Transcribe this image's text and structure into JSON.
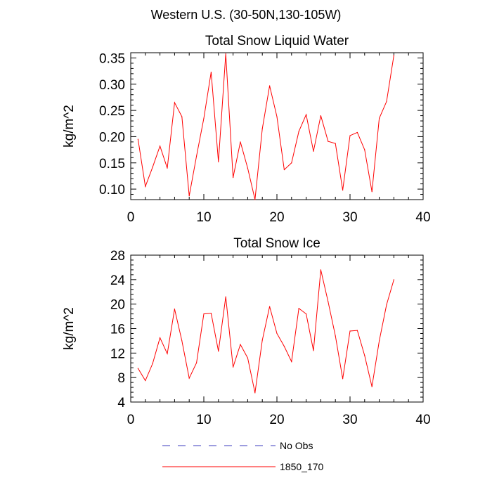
{
  "figure": {
    "title": "Western U.S. (30-50N,130-105W)"
  },
  "legend": {
    "items": [
      {
        "label": "No Obs",
        "color": "#3b3bbf",
        "style": "dashed"
      },
      {
        "label": "1850_170",
        "color": "#ff0000",
        "style": "solid"
      }
    ]
  },
  "chart_data": [
    {
      "type": "line",
      "title": "Total Snow Liquid Water",
      "xlabel": "",
      "ylabel": "kg/m^2",
      "xlim": [
        0,
        40
      ],
      "ylim": [
        0.08,
        0.36
      ],
      "xticks": [
        0,
        10,
        20,
        30,
        40
      ],
      "yticks": [
        0.1,
        0.15,
        0.2,
        0.25,
        0.3,
        0.35
      ],
      "ytick_labels": [
        "0.10",
        "0.15",
        "0.20",
        "0.25",
        "0.30",
        "0.35"
      ],
      "grid": false,
      "series": [
        {
          "name": "1850_170",
          "color": "#ff0000",
          "x": [
            1,
            2,
            3,
            4,
            5,
            6,
            7,
            8,
            9,
            10,
            11,
            12,
            13,
            14,
            15,
            16,
            17,
            18,
            19,
            20,
            21,
            22,
            23,
            24,
            25,
            26,
            27,
            28,
            29,
            30,
            31,
            32,
            33,
            34,
            35,
            36
          ],
          "values": [
            0.195,
            0.105,
            0.142,
            0.182,
            0.14,
            0.265,
            0.238,
            0.087,
            0.163,
            0.235,
            0.323,
            0.152,
            0.358,
            0.122,
            0.19,
            0.14,
            0.08,
            0.215,
            0.297,
            0.238,
            0.137,
            0.15,
            0.21,
            0.242,
            0.172,
            0.24,
            0.191,
            0.187,
            0.098,
            0.202,
            0.208,
            0.175,
            0.095,
            0.235,
            0.267,
            0.355
          ]
        }
      ]
    },
    {
      "type": "line",
      "title": "Total Snow Ice",
      "xlabel": "",
      "ylabel": "kg/m^2",
      "xlim": [
        0,
        40
      ],
      "ylim": [
        4,
        28
      ],
      "xticks": [
        0,
        10,
        20,
        30,
        40
      ],
      "yticks": [
        4,
        8,
        12,
        16,
        20,
        24,
        28
      ],
      "ytick_labels": [
        "4",
        "8",
        "12",
        "16",
        "20",
        "24",
        "28"
      ],
      "grid": false,
      "series": [
        {
          "name": "1850_170",
          "color": "#ff0000",
          "x": [
            1,
            2,
            3,
            4,
            5,
            6,
            7,
            8,
            9,
            10,
            11,
            12,
            13,
            14,
            15,
            16,
            17,
            18,
            19,
            20,
            21,
            22,
            23,
            24,
            25,
            26,
            27,
            28,
            29,
            30,
            31,
            32,
            33,
            34,
            35,
            36
          ],
          "values": [
            9.5,
            7.5,
            10.3,
            14.5,
            11.9,
            19.2,
            14.0,
            7.9,
            10.4,
            18.4,
            18.5,
            12.3,
            21.2,
            9.7,
            13.4,
            11.2,
            5.5,
            14.1,
            19.6,
            15.2,
            13.1,
            10.6,
            19.3,
            18.4,
            12.4,
            25.6,
            20.4,
            14.8,
            7.8,
            15.6,
            15.7,
            11.6,
            6.5,
            14.0,
            19.9,
            24.0
          ]
        }
      ]
    }
  ]
}
